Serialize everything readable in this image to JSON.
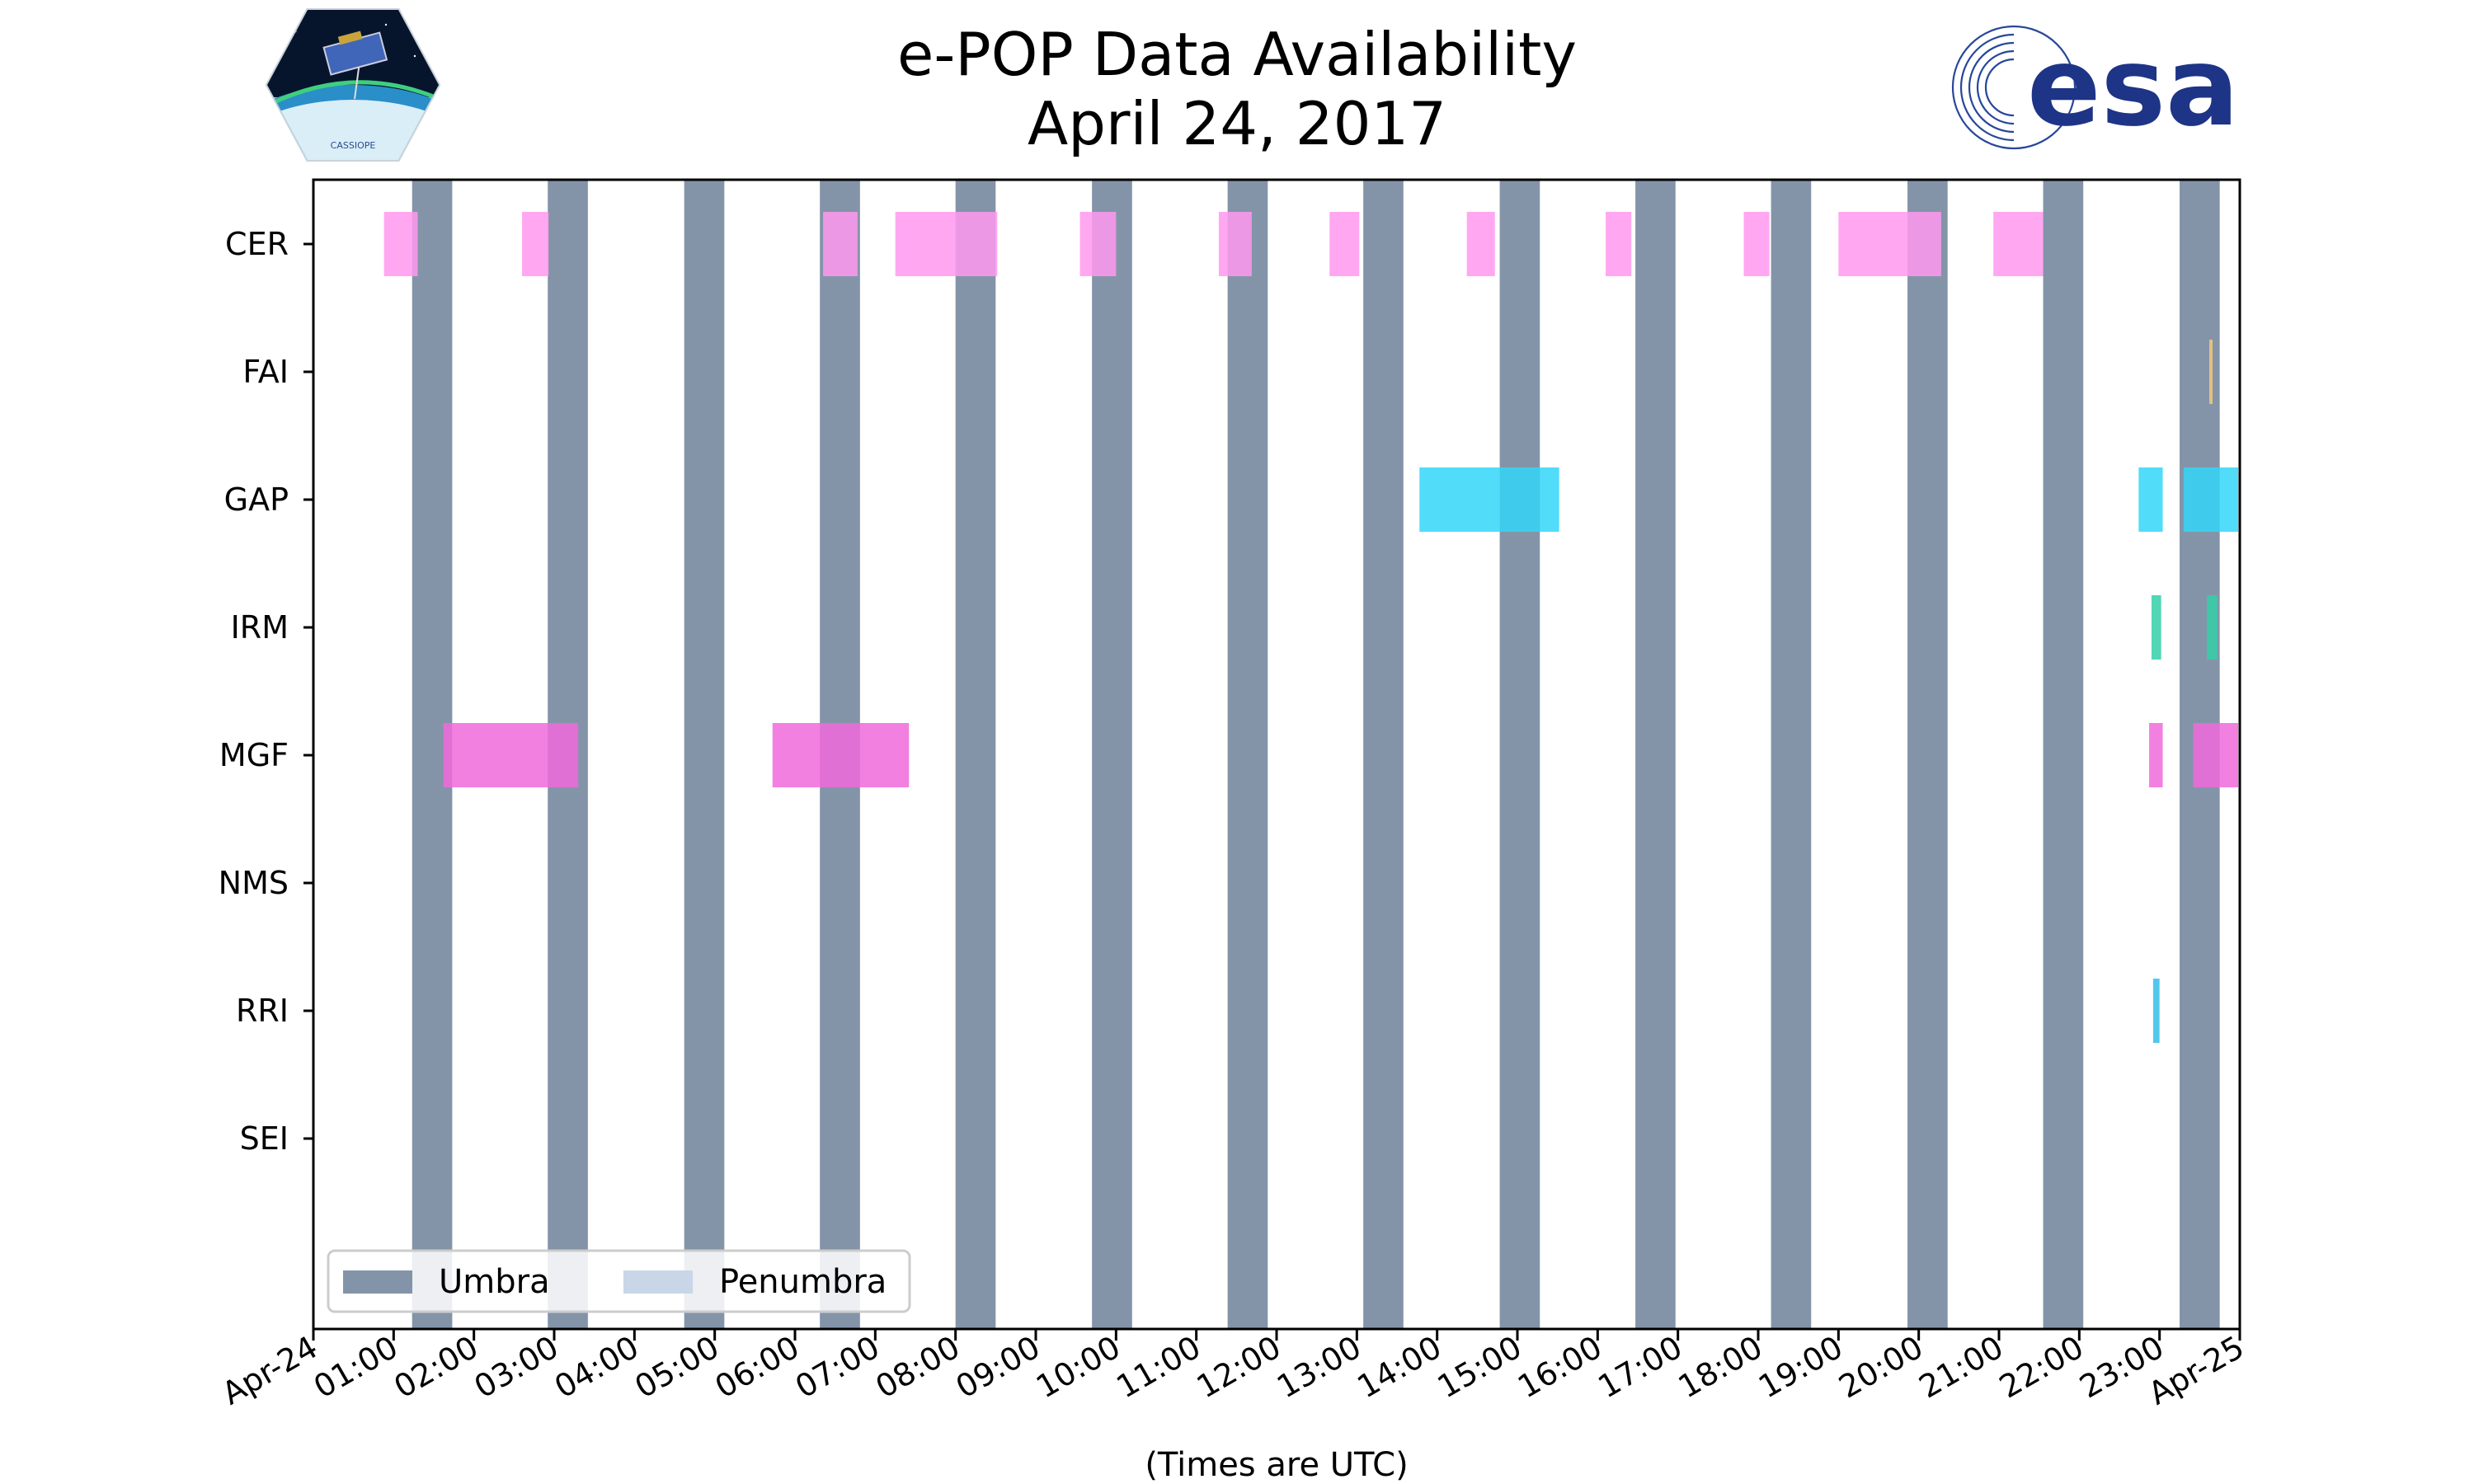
{
  "title": "e-POP Data Availability",
  "subtitle": "April 24, 2017",
  "logos": {
    "left": {
      "name": "cassiope-mission-logo",
      "text": "CASSIOPE"
    },
    "right": {
      "name": "esa-logo",
      "text": "esa"
    }
  },
  "colors": {
    "umbra": "#8494a8",
    "penumbra": "#c8d6e8",
    "CER": "#ff99ee",
    "FAI": "#f5c87a",
    "GAP": "#33d6f8",
    "IRM": "#33d0a8",
    "MGF": "#f06adc",
    "RRI": "#33bde8",
    "axis": "#000000"
  },
  "chart_data": {
    "type": "timeline",
    "title": "e-POP Data Availability",
    "subtitle": "April 24, 2017",
    "xlabel": "(Times are UTC)",
    "ylabel": "",
    "x_range_hours": [
      0,
      24
    ],
    "x_ticks": [
      "Apr-24",
      "01:00",
      "02:00",
      "03:00",
      "04:00",
      "05:00",
      "06:00",
      "07:00",
      "08:00",
      "09:00",
      "10:00",
      "11:00",
      "12:00",
      "13:00",
      "14:00",
      "15:00",
      "16:00",
      "17:00",
      "18:00",
      "19:00",
      "20:00",
      "21:00",
      "22:00",
      "23:00",
      "Apr-25"
    ],
    "instruments": [
      "CER",
      "FAI",
      "GAP",
      "IRM",
      "MGF",
      "NMS",
      "RRI",
      "SEI"
    ],
    "umbra": [
      [
        1.23,
        1.73
      ],
      [
        2.92,
        3.42
      ],
      [
        4.62,
        5.12
      ],
      [
        6.31,
        6.81
      ],
      [
        8.0,
        8.5
      ],
      [
        9.7,
        10.2
      ],
      [
        11.39,
        11.89
      ],
      [
        13.08,
        13.58
      ],
      [
        14.78,
        15.28
      ],
      [
        16.47,
        16.97
      ],
      [
        18.16,
        18.66
      ],
      [
        19.86,
        20.36
      ],
      [
        21.55,
        22.05
      ],
      [
        23.25,
        23.75
      ]
    ],
    "penumbra": [],
    "legend": {
      "position": "lower-left",
      "entries": [
        "Umbra",
        "Penumbra"
      ]
    },
    "series": [
      {
        "name": "CER",
        "intervals": [
          [
            0.88,
            1.3
          ],
          [
            2.6,
            2.93
          ],
          [
            6.35,
            6.78
          ],
          [
            7.25,
            8.52
          ],
          [
            9.55,
            10.0
          ],
          [
            11.28,
            11.69
          ],
          [
            12.66,
            13.03
          ],
          [
            14.37,
            14.72
          ],
          [
            16.1,
            16.42
          ],
          [
            17.82,
            18.14
          ],
          [
            19.0,
            20.28
          ],
          [
            20.93,
            21.55
          ]
        ]
      },
      {
        "name": "FAI",
        "intervals": [
          [
            23.62,
            23.66
          ]
        ]
      },
      {
        "name": "GAP",
        "intervals": [
          [
            13.78,
            15.52
          ],
          [
            22.74,
            23.04
          ],
          [
            23.3,
            23.98
          ]
        ]
      },
      {
        "name": "IRM",
        "intervals": [
          [
            22.9,
            23.02
          ],
          [
            23.59,
            23.72
          ]
        ]
      },
      {
        "name": "MGF",
        "intervals": [
          [
            1.62,
            3.3
          ],
          [
            5.72,
            7.42
          ],
          [
            22.87,
            23.04
          ],
          [
            23.42,
            23.98
          ]
        ]
      },
      {
        "name": "NMS",
        "intervals": []
      },
      {
        "name": "RRI",
        "intervals": [
          [
            22.92,
            23.0
          ]
        ]
      },
      {
        "name": "SEI",
        "intervals": []
      }
    ]
  }
}
